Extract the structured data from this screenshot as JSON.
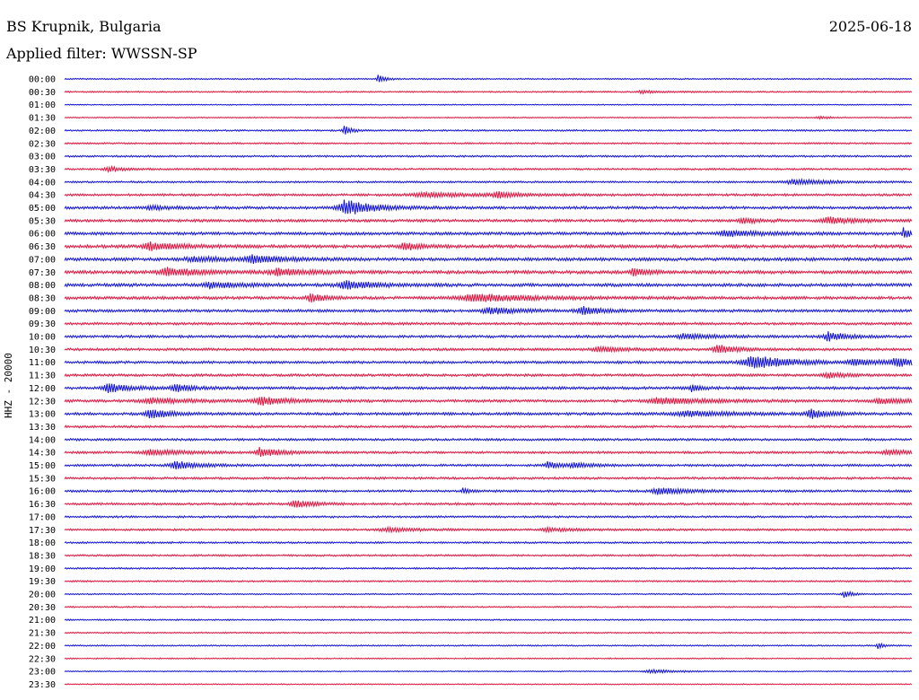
{
  "header": {
    "station": "BS Krupnik, Bulgaria",
    "date": "2025-06-18",
    "filter": "Applied filter: WWSSN-SP",
    "channel": "HHZ - 20000"
  },
  "colors": {
    "even": "#1010e0",
    "odd": "#e8103c"
  },
  "chart_data": {
    "type": "line",
    "title": "",
    "xlabel": "",
    "ylabel": "HHZ - 20000",
    "rows": [
      "00:00",
      "00:30",
      "01:00",
      "01:30",
      "02:00",
      "02:30",
      "03:00",
      "03:30",
      "04:00",
      "04:30",
      "05:00",
      "05:30",
      "06:00",
      "06:30",
      "07:00",
      "07:30",
      "08:00",
      "08:30",
      "09:00",
      "09:30",
      "10:00",
      "10:30",
      "11:00",
      "11:30",
      "12:00",
      "12:30",
      "13:00",
      "13:30",
      "14:00",
      "14:30",
      "15:00",
      "15:30",
      "16:00",
      "16:30",
      "17:00",
      "17:30",
      "18:00",
      "18:30",
      "19:00",
      "19:30",
      "20:00",
      "20:30",
      "21:00",
      "21:30",
      "22:00",
      "22:30",
      "23:00",
      "23:30"
    ],
    "noise": [
      1.5,
      1.5,
      1.2,
      1.2,
      1.8,
      1.8,
      2,
      2,
      2,
      2.5,
      3,
      3,
      3.2,
      3.5,
      3.5,
      3.5,
      3.5,
      3.2,
      3,
      2.8,
      2.8,
      2.8,
      2.8,
      2.8,
      3,
      3,
      3,
      2.5,
      2.5,
      2.5,
      2.5,
      2.5,
      2.5,
      2.5,
      2.2,
      2.2,
      2,
      2,
      1.8,
      1.8,
      1.5,
      1.5,
      1.5,
      1.5,
      1.5,
      1.3,
      1.2,
      1.2
    ],
    "events": [
      {
        "row": 0,
        "x": 0.37,
        "amp": 12,
        "w": 0.003
      },
      {
        "row": 1,
        "x": 0.68,
        "amp": 3,
        "w": 0.01
      },
      {
        "row": 3,
        "x": 0.89,
        "amp": 3,
        "w": 0.006
      },
      {
        "row": 4,
        "x": 0.33,
        "amp": 10,
        "w": 0.004
      },
      {
        "row": 7,
        "x": 0.05,
        "amp": 5,
        "w": 0.01
      },
      {
        "row": 8,
        "x": 0.86,
        "amp": 6,
        "w": 0.02
      },
      {
        "row": 9,
        "x": 0.42,
        "amp": 5,
        "w": 0.03
      },
      {
        "row": 9,
        "x": 0.51,
        "amp": 6,
        "w": 0.01
      },
      {
        "row": 10,
        "x": 0.33,
        "amp": 18,
        "w": 0.015
      },
      {
        "row": 10,
        "x": 0.1,
        "amp": 5,
        "w": 0.01
      },
      {
        "row": 11,
        "x": 0.9,
        "amp": 7,
        "w": 0.015
      },
      {
        "row": 11,
        "x": 0.8,
        "amp": 5,
        "w": 0.01
      },
      {
        "row": 12,
        "x": 0.99,
        "amp": 14,
        "w": 0.003
      },
      {
        "row": 12,
        "x": 0.78,
        "amp": 6,
        "w": 0.02
      },
      {
        "row": 13,
        "x": 0.1,
        "amp": 9,
        "w": 0.015
      },
      {
        "row": 13,
        "x": 0.4,
        "amp": 9,
        "w": 0.008
      },
      {
        "row": 14,
        "x": 0.22,
        "amp": 9,
        "w": 0.015
      },
      {
        "row": 14,
        "x": 0.15,
        "amp": 5,
        "w": 0.02
      },
      {
        "row": 15,
        "x": 0.25,
        "amp": 8,
        "w": 0.015
      },
      {
        "row": 15,
        "x": 0.12,
        "amp": 9,
        "w": 0.02
      },
      {
        "row": 15,
        "x": 0.67,
        "amp": 9,
        "w": 0.008
      },
      {
        "row": 16,
        "x": 0.33,
        "amp": 10,
        "w": 0.015
      },
      {
        "row": 16,
        "x": 0.17,
        "amp": 7,
        "w": 0.015
      },
      {
        "row": 17,
        "x": 0.48,
        "amp": 9,
        "w": 0.03
      },
      {
        "row": 17,
        "x": 0.29,
        "amp": 10,
        "w": 0.008
      },
      {
        "row": 18,
        "x": 0.5,
        "amp": 8,
        "w": 0.015
      },
      {
        "row": 18,
        "x": 0.61,
        "amp": 9,
        "w": 0.01
      },
      {
        "row": 20,
        "x": 0.73,
        "amp": 6,
        "w": 0.015
      },
      {
        "row": 20,
        "x": 0.9,
        "amp": 10,
        "w": 0.01
      },
      {
        "row": 21,
        "x": 0.77,
        "amp": 10,
        "w": 0.01
      },
      {
        "row": 21,
        "x": 0.63,
        "amp": 5,
        "w": 0.015
      },
      {
        "row": 22,
        "x": 0.81,
        "amp": 16,
        "w": 0.02
      },
      {
        "row": 22,
        "x": 0.98,
        "amp": 9,
        "w": 0.012
      },
      {
        "row": 22,
        "x": 0.93,
        "amp": 6,
        "w": 0.015
      },
      {
        "row": 23,
        "x": 0.9,
        "amp": 6,
        "w": 0.01
      },
      {
        "row": 24,
        "x": 0.05,
        "amp": 10,
        "w": 0.012
      },
      {
        "row": 24,
        "x": 0.13,
        "amp": 8,
        "w": 0.01
      },
      {
        "row": 24,
        "x": 0.74,
        "amp": 7,
        "w": 0.006
      },
      {
        "row": 25,
        "x": 0.23,
        "amp": 10,
        "w": 0.012
      },
      {
        "row": 25,
        "x": 0.7,
        "amp": 7,
        "w": 0.025
      },
      {
        "row": 25,
        "x": 0.1,
        "amp": 6,
        "w": 0.02
      },
      {
        "row": 25,
        "x": 0.96,
        "amp": 6,
        "w": 0.015
      },
      {
        "row": 26,
        "x": 0.1,
        "amp": 11,
        "w": 0.01
      },
      {
        "row": 26,
        "x": 0.88,
        "amp": 10,
        "w": 0.01
      },
      {
        "row": 26,
        "x": 0.73,
        "amp": 6,
        "w": 0.025
      },
      {
        "row": 29,
        "x": 0.23,
        "amp": 11,
        "w": 0.01
      },
      {
        "row": 29,
        "x": 0.1,
        "amp": 6,
        "w": 0.02
      },
      {
        "row": 29,
        "x": 0.97,
        "amp": 6,
        "w": 0.012
      },
      {
        "row": 30,
        "x": 0.13,
        "amp": 10,
        "w": 0.012
      },
      {
        "row": 30,
        "x": 0.57,
        "amp": 9,
        "w": 0.006
      },
      {
        "row": 30,
        "x": 0.6,
        "amp": 6,
        "w": 0.01
      },
      {
        "row": 32,
        "x": 0.7,
        "amp": 8,
        "w": 0.015
      },
      {
        "row": 32,
        "x": 0.47,
        "amp": 6,
        "w": 0.004
      },
      {
        "row": 33,
        "x": 0.27,
        "amp": 9,
        "w": 0.01
      },
      {
        "row": 35,
        "x": 0.38,
        "amp": 5,
        "w": 0.015
      },
      {
        "row": 35,
        "x": 0.57,
        "amp": 4,
        "w": 0.015
      },
      {
        "row": 40,
        "x": 0.92,
        "amp": 9,
        "w": 0.004
      },
      {
        "row": 44,
        "x": 0.96,
        "amp": 7,
        "w": 0.003
      },
      {
        "row": 46,
        "x": 0.69,
        "amp": 4,
        "w": 0.015
      }
    ]
  }
}
